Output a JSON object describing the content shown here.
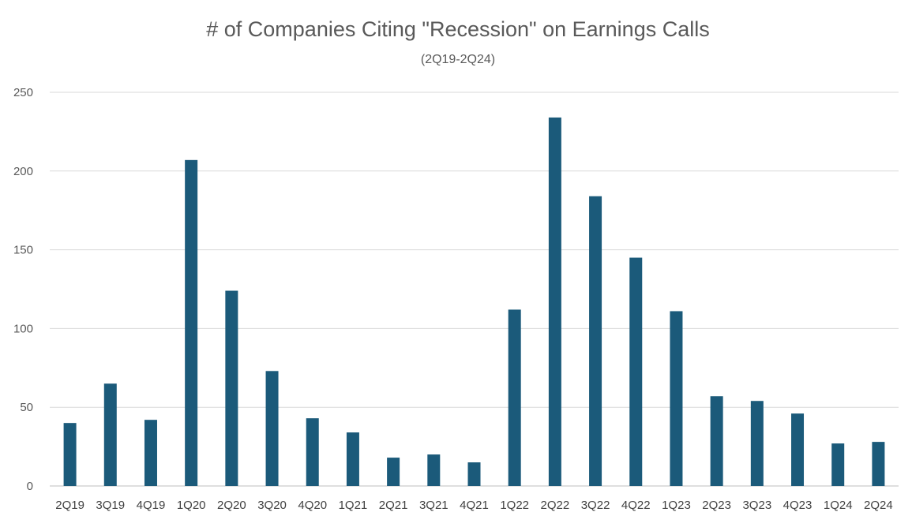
{
  "colors": {
    "bar": "#1b5a7a",
    "grid": "#d9d9d9",
    "text": "#595959",
    "background": "#ffffff"
  },
  "chart_data": {
    "type": "bar",
    "title": "# of Companies Citing \"Recession\" on Earnings Calls",
    "subtitle": "(2Q19-2Q24)",
    "xlabel": "",
    "ylabel": "",
    "ylim": [
      0,
      250
    ],
    "yticks": [
      0,
      50,
      100,
      150,
      200,
      250
    ],
    "grid": true,
    "legend": "none",
    "categories": [
      "2Q19",
      "3Q19",
      "4Q19",
      "1Q20",
      "2Q20",
      "3Q20",
      "4Q20",
      "1Q21",
      "2Q21",
      "3Q21",
      "4Q21",
      "1Q22",
      "2Q22",
      "3Q22",
      "4Q22",
      "1Q23",
      "2Q23",
      "3Q23",
      "4Q23",
      "1Q24",
      "2Q24"
    ],
    "values": [
      40,
      65,
      42,
      207,
      124,
      73,
      43,
      34,
      18,
      20,
      15,
      112,
      234,
      184,
      145,
      111,
      57,
      54,
      46,
      27,
      28
    ]
  }
}
